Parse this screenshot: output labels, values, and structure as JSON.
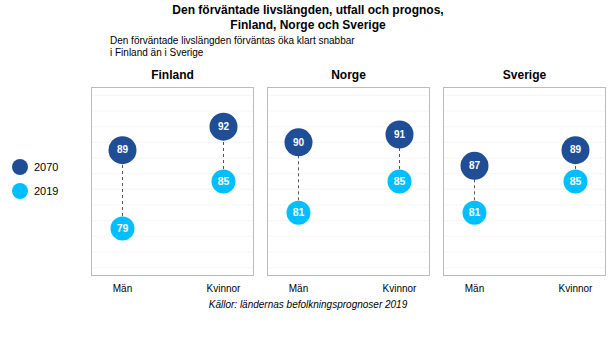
{
  "chart_data": {
    "type": "dumbbell",
    "title": "Den förväntade livslängden, utfall och prognos,\nFinland, Norge och Sverige",
    "subtitle": "Den förväntade livslängden förväntas öka klart snabbar\ni Finland än i Sverige",
    "caption": "Källor: ländernas befolkningsprognoser 2019",
    "groups": [
      "Finland",
      "Norge",
      "Sverige"
    ],
    "categories": [
      "Män",
      "Kvinnor",
      "Män",
      "Kvinnor",
      "Män",
      "Kvinnor"
    ],
    "series": [
      {
        "name": "2070",
        "color": "#1f4e97",
        "values": [
          89,
          92,
          90,
          91,
          87,
          89
        ]
      },
      {
        "name": "2019",
        "color": "#00bfff",
        "values": [
          79,
          85,
          81,
          85,
          81,
          85
        ]
      }
    ],
    "ylim": [
      73,
      97
    ],
    "yticks": [
      74,
      76,
      78,
      80,
      82,
      84,
      86,
      88,
      90,
      92,
      94,
      96
    ],
    "grid": true,
    "tick_labels": "x",
    "data_labels": true,
    "legend": "left"
  }
}
